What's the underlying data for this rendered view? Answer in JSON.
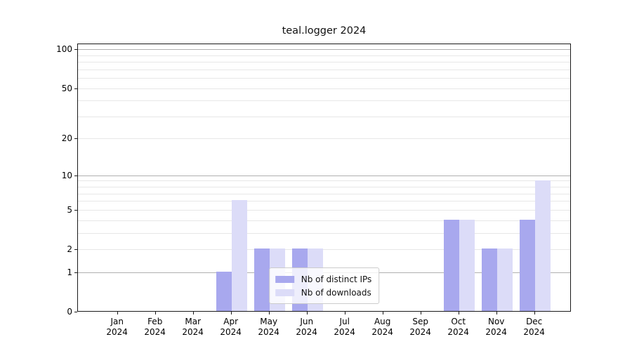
{
  "title": "teal.logger 2024",
  "colors": {
    "bar_distinct_ips": "#a8a8ee",
    "bar_downloads": "#dcdcf8",
    "grid_major": "#b0b0b0",
    "grid_minor": "#e7e7e7",
    "axis": "#1a1a1a",
    "legend_border": "#cccccc"
  },
  "chart_data": {
    "type": "bar",
    "title": "teal.logger 2024",
    "categories": [
      "Jan 2024",
      "Feb 2024",
      "Mar 2024",
      "Apr 2024",
      "May 2024",
      "Jun 2024",
      "Jul 2024",
      "Aug 2024",
      "Sep 2024",
      "Oct 2024",
      "Nov 2024",
      "Dec 2024"
    ],
    "series": [
      {
        "name": "Nb of distinct IPs",
        "color": "#a8a8ee",
        "values": [
          0,
          0,
          0,
          1,
          2,
          2,
          0,
          0,
          0,
          4,
          2,
          4
        ]
      },
      {
        "name": "Nb of downloads",
        "color": "#dcdcf8",
        "values": [
          0,
          0,
          0,
          6,
          2,
          2,
          0,
          0,
          0,
          4,
          2,
          9
        ]
      }
    ],
    "xlabel": "",
    "ylabel": "",
    "yscale": "log1p",
    "ylim": [
      0,
      110
    ],
    "yticks": [
      0,
      1,
      2,
      5,
      10,
      20,
      50,
      100
    ],
    "grid": "horizontal",
    "grid_major_values": [
      1,
      10,
      100
    ],
    "grid_minor_values": [
      2,
      3,
      4,
      5,
      6,
      7,
      8,
      9,
      20,
      30,
      40,
      50,
      60,
      70,
      80,
      90
    ],
    "legend_position": "lower center"
  }
}
